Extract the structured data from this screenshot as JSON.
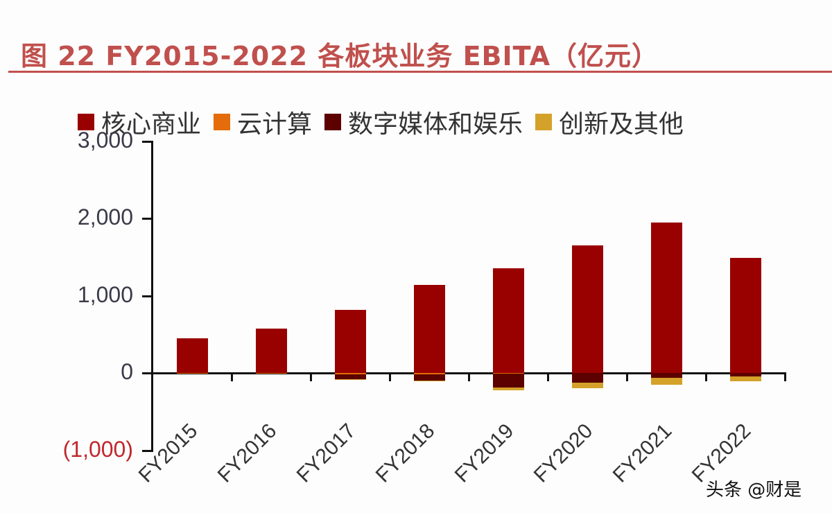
{
  "header": {
    "title": "图 22 FY2015-2022 各板块业务 EBITA（亿元）"
  },
  "legend": [
    {
      "label": "核心商业",
      "color": "#990000"
    },
    {
      "label": "云计算",
      "color": "#e46c0a"
    },
    {
      "label": "数字媒体和娱乐",
      "color": "#5c0000"
    },
    {
      "label": "创新及其他",
      "color": "#d4a22a"
    }
  ],
  "y_axis": {
    "ticks": [
      "3,000",
      "2,000",
      "1,000",
      "0",
      "(1,000)"
    ]
  },
  "x_axis": {
    "ticks": [
      "FY2015",
      "FY2016",
      "FY2017",
      "FY2018",
      "FY2019",
      "FY2020",
      "FY2021",
      "FY2022"
    ]
  },
  "watermark": "头条 @财是",
  "chart_data": {
    "type": "bar",
    "stacked": true,
    "title": "图 22 FY2015-2022 各板块业务 EBITA（亿元）",
    "xlabel": "",
    "ylabel": "",
    "ylim": [
      -1000,
      3000
    ],
    "yticks": [
      -1000,
      0,
      1000,
      2000,
      3000
    ],
    "legend_position": "top",
    "grid": false,
    "categories": [
      "FY2015",
      "FY2016",
      "FY2017",
      "FY2018",
      "FY2019",
      "FY2020",
      "FY2021",
      "FY2022"
    ],
    "series": [
      {
        "name": "核心商业",
        "color": "#990000",
        "values": [
          450,
          575,
          815,
          1140,
          1355,
          1650,
          1945,
          1490
        ]
      },
      {
        "name": "云计算",
        "color": "#e46c0a",
        "values": [
          -10,
          -10,
          -20,
          -15,
          -5,
          0,
          0,
          0
        ]
      },
      {
        "name": "数字媒体和娱乐",
        "color": "#5c0000",
        "values": [
          0,
          0,
          -60,
          -80,
          -180,
          -130,
          -60,
          -45
        ]
      },
      {
        "name": "创新及其他",
        "color": "#d4a22a",
        "values": [
          0,
          0,
          -10,
          -10,
          -35,
          -70,
          -90,
          -60
        ]
      }
    ]
  }
}
